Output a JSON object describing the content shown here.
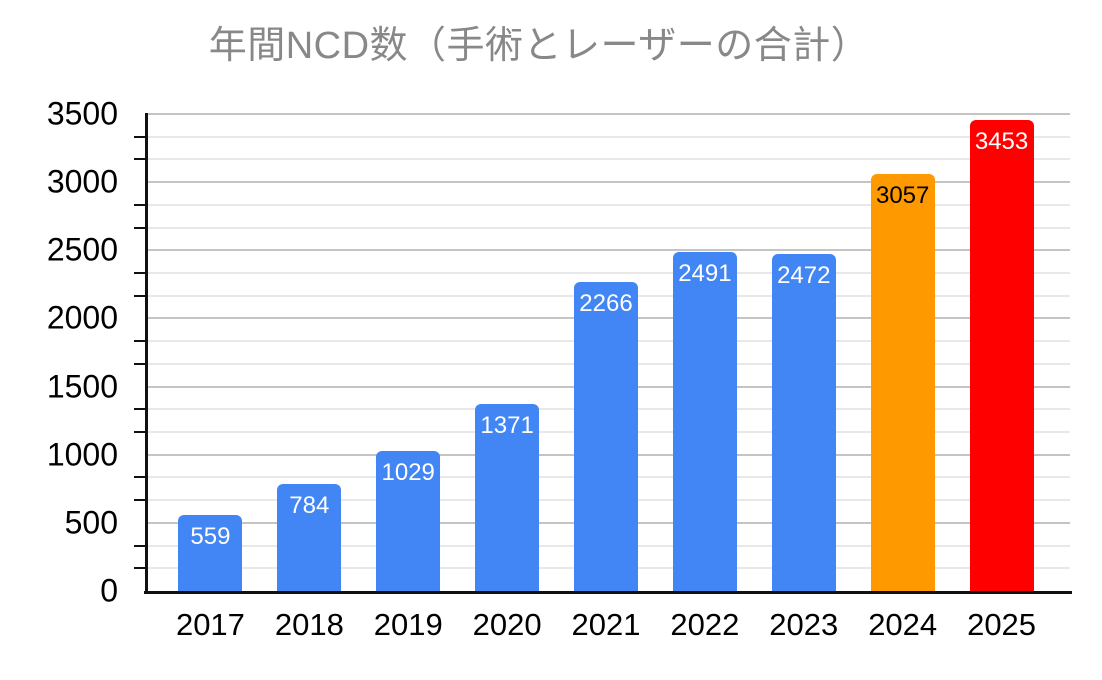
{
  "chart_data": {
    "type": "bar",
    "title": "年間NCD数（手術とレーザーの合計）",
    "categories": [
      "2017",
      "2018",
      "2019",
      "2020",
      "2021",
      "2022",
      "2023",
      "2024",
      "2025"
    ],
    "values": [
      559,
      784,
      1029,
      1371,
      2266,
      2491,
      2472,
      3057,
      3453
    ],
    "bar_colors": [
      "#4285f4",
      "#4285f4",
      "#4285f4",
      "#4285f4",
      "#4285f4",
      "#4285f4",
      "#4285f4",
      "#ff9900",
      "#ff0000"
    ],
    "value_label_colors": [
      "#ffffff",
      "#ffffff",
      "#ffffff",
      "#ffffff",
      "#ffffff",
      "#ffffff",
      "#ffffff",
      "#000000",
      "#ffffff"
    ],
    "xlabel": "",
    "ylabel": "",
    "ylim": [
      0,
      3500
    ],
    "y_major_step": 500,
    "y_minor_gridlines_per_interval": 2,
    "y_tick_labels": [
      "0",
      "500",
      "1000",
      "1500",
      "2000",
      "2500",
      "3000",
      "3500"
    ],
    "grid": true,
    "legend_position": "none",
    "colors": {
      "background": "#ffffff",
      "title": "#888888",
      "axis": "#111111",
      "axis_label": "#000000",
      "major_gridline": "#c4c4c4",
      "minor_gridline": "#e8e8e8"
    }
  }
}
